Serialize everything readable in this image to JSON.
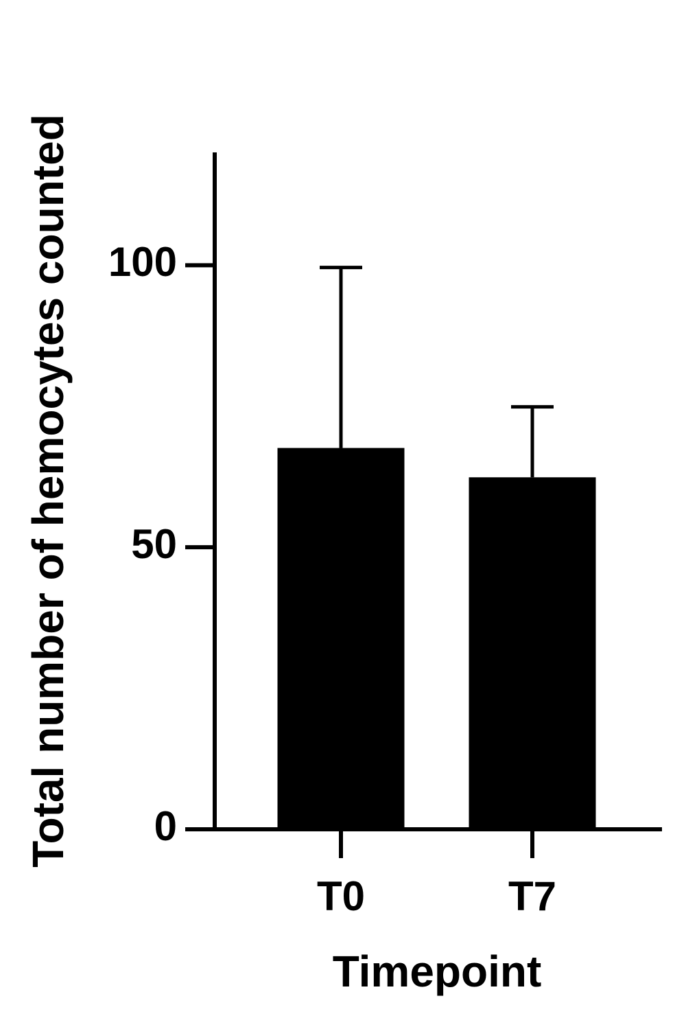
{
  "chart_data": {
    "type": "bar",
    "x_label": "Timepoint",
    "y_label": "Total number of hemocytes counted",
    "categories": [
      "T0",
      "T7"
    ],
    "values": [
      67.6,
      62.4
    ],
    "errors": [
      32,
      12.5
    ],
    "color": "#000000",
    "ylim": [
      0,
      120
    ],
    "yticks": [
      0,
      50,
      100
    ]
  }
}
